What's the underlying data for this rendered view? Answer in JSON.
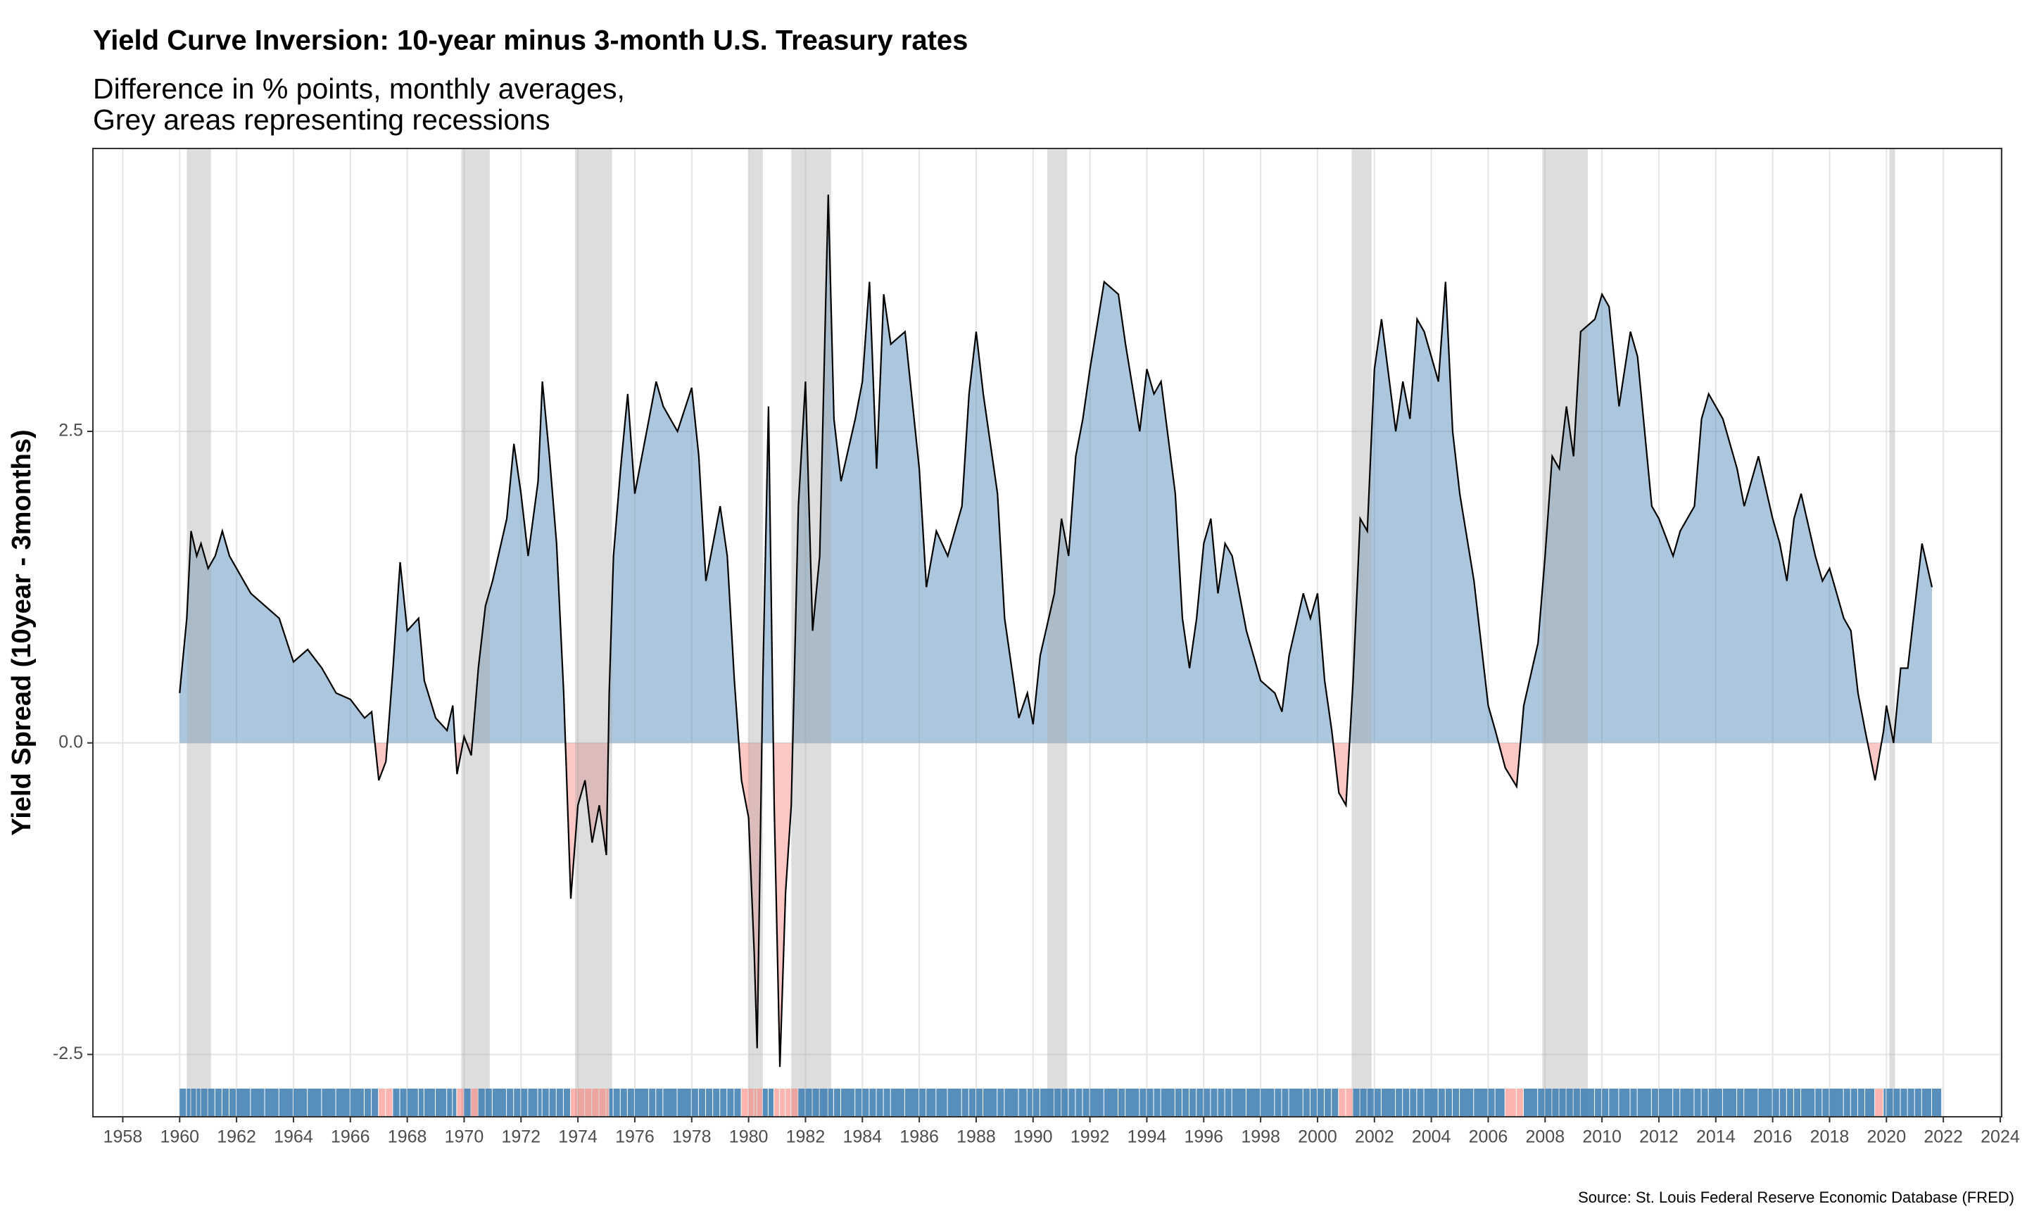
{
  "chart_data": {
    "type": "area",
    "title": "Yield Curve Inversion: 10-year minus 3-month U.S. Treasury rates",
    "subtitle": [
      "Difference in % points, monthly averages,",
      "Grey areas representing recessions"
    ],
    "y_label": "Yield Spread (10year - 3months)",
    "caption": "Source: St. Louis Federal Reserve Economic Database (FRED)",
    "xlim": [
      1956.95,
      2024.05
    ],
    "ylim": [
      -3,
      4.77
    ],
    "xticks": [
      1958,
      1960,
      1962,
      1964,
      1966,
      1968,
      1970,
      1972,
      1974,
      1976,
      1978,
      1980,
      1982,
      1984,
      1986,
      1988,
      1990,
      1992,
      1994,
      1996,
      1998,
      2000,
      2002,
      2004,
      2006,
      2008,
      2010,
      2012,
      2014,
      2016,
      2018,
      2020,
      2022,
      2024
    ],
    "yticks": [
      -2.5,
      {
        "value": 0,
        "label": "0.0"
      },
      2.5
    ],
    "grid": true,
    "positive_color": "#4682b4",
    "negative_color": "#f8766d",
    "line_color": "#000000",
    "recession_color": "#aaaaaa",
    "recessions": [
      [
        1960.25,
        1961.1
      ],
      [
        1969.9,
        1970.9
      ],
      [
        1973.9,
        1975.2
      ],
      [
        1980.0,
        1980.5
      ],
      [
        1981.5,
        1982.9
      ],
      [
        1990.5,
        1991.2
      ],
      [
        2001.2,
        2001.9
      ],
      [
        2007.9,
        2009.5
      ],
      [
        2020.1,
        2020.3
      ]
    ],
    "x": [
      1960,
      1960.25,
      1960.4,
      1960.6,
      1960.75,
      1961,
      1961.25,
      1961.5,
      1961.75,
      1962,
      1962.5,
      1963,
      1963.5,
      1964,
      1964.5,
      1965,
      1965.5,
      1966,
      1966.5,
      1966.75,
      1967,
      1967.25,
      1967.5,
      1967.75,
      1968,
      1968.4,
      1968.6,
      1969,
      1969.4,
      1969.6,
      1969.75,
      1970,
      1970.25,
      1970.5,
      1970.75,
      1971,
      1971.5,
      1971.75,
      1972,
      1972.25,
      1972.6,
      1972.75,
      1973,
      1973.25,
      1973.5,
      1973.75,
      1974,
      1974.25,
      1974.5,
      1974.75,
      1975,
      1975.1,
      1975.25,
      1975.5,
      1975.75,
      1976,
      1976.5,
      1976.75,
      1977,
      1977.5,
      1978,
      1978.25,
      1978.5,
      1978.75,
      1979,
      1979.25,
      1979.5,
      1979.75,
      1980,
      1980.2,
      1980.3,
      1980.5,
      1980.7,
      1980.9,
      1981.1,
      1981.3,
      1981.5,
      1981.75,
      1982,
      1982.25,
      1982.5,
      1982.8,
      1983,
      1983.25,
      1983.75,
      1984,
      1984.25,
      1984.5,
      1984.75,
      1985,
      1985.5,
      1986,
      1986.25,
      1986.6,
      1987,
      1987.5,
      1987.75,
      1988,
      1988.25,
      1988.75,
      1989,
      1989.5,
      1989.8,
      1990,
      1990.25,
      1990.75,
      1991,
      1991.25,
      1991.5,
      1991.75,
      1992,
      1992.5,
      1993,
      1993.25,
      1993.75,
      1994,
      1994.25,
      1994.5,
      1995,
      1995.25,
      1995.5,
      1995.75,
      1996,
      1996.25,
      1996.5,
      1996.75,
      1997,
      1997.5,
      1998,
      1998.5,
      1998.75,
      1999,
      1999.5,
      1999.75,
      2000,
      2000.25,
      2000.5,
      2000.75,
      2001,
      2001.25,
      2001.5,
      2001.75,
      2002,
      2002.25,
      2002.75,
      2003,
      2003.25,
      2003.5,
      2003.75,
      2004.25,
      2004.5,
      2004.75,
      2005,
      2005.5,
      2006,
      2006.25,
      2006.6,
      2007,
      2007.25,
      2007.75,
      2008,
      2008.25,
      2008.5,
      2008.75,
      2009,
      2009.25,
      2009.75,
      2010,
      2010.25,
      2010.6,
      2011,
      2011.25,
      2011.75,
      2012,
      2012.5,
      2012.75,
      2013.25,
      2013.5,
      2013.75,
      2014.25,
      2014.75,
      2015,
      2015.5,
      2016,
      2016.25,
      2016.5,
      2016.75,
      2017,
      2017.5,
      2017.75,
      2018,
      2018.5,
      2018.75,
      2019,
      2019.25,
      2019.6,
      2019.9,
      2020,
      2020.25,
      2020.5,
      2020.75,
      2021,
      2021.25,
      2021.6
    ],
    "values": [
      0.4,
      1.0,
      1.7,
      1.5,
      1.6,
      1.4,
      1.5,
      1.7,
      1.5,
      1.4,
      1.2,
      1.1,
      1.0,
      0.65,
      0.75,
      0.6,
      0.4,
      0.35,
      0.2,
      0.25,
      -0.3,
      -0.15,
      0.6,
      1.45,
      0.9,
      1.0,
      0.5,
      0.2,
      0.1,
      0.3,
      -0.25,
      0.05,
      -0.1,
      0.6,
      1.1,
      1.3,
      1.8,
      2.4,
      2.0,
      1.5,
      2.1,
      2.9,
      2.3,
      1.6,
      0.4,
      -1.25,
      -0.5,
      -0.3,
      -0.8,
      -0.5,
      -0.9,
      0.4,
      1.5,
      2.2,
      2.8,
      2.0,
      2.6,
      2.9,
      2.7,
      2.5,
      2.85,
      2.3,
      1.3,
      1.6,
      1.9,
      1.5,
      0.5,
      -0.3,
      -0.6,
      -1.7,
      -2.45,
      0.5,
      2.7,
      -0.5,
      -2.6,
      -1.2,
      -0.5,
      1.9,
      2.9,
      0.9,
      1.5,
      4.4,
      2.6,
      2.1,
      2.6,
      2.9,
      3.7,
      2.2,
      3.6,
      3.2,
      3.3,
      2.2,
      1.25,
      1.7,
      1.5,
      1.9,
      2.8,
      3.3,
      2.8,
      2.0,
      1.0,
      0.2,
      0.4,
      0.15,
      0.7,
      1.2,
      1.8,
      1.5,
      2.3,
      2.6,
      3.0,
      3.7,
      3.6,
      3.2,
      2.5,
      3.0,
      2.8,
      2.9,
      2.0,
      1.0,
      0.6,
      1.0,
      1.6,
      1.8,
      1.2,
      1.6,
      1.5,
      0.9,
      0.5,
      0.4,
      0.25,
      0.7,
      1.2,
      1.0,
      1.2,
      0.5,
      0.1,
      -0.4,
      -0.5,
      0.5,
      1.8,
      1.7,
      3.0,
      3.4,
      2.5,
      2.9,
      2.6,
      3.4,
      3.3,
      2.9,
      3.7,
      2.5,
      2.0,
      1.3,
      0.3,
      0.1,
      -0.2,
      -0.35,
      0.3,
      0.8,
      1.5,
      2.3,
      2.2,
      2.7,
      2.3,
      3.3,
      3.4,
      3.6,
      3.5,
      2.7,
      3.3,
      3.1,
      1.9,
      1.8,
      1.5,
      1.7,
      1.9,
      2.6,
      2.8,
      2.6,
      2.2,
      1.9,
      2.3,
      1.8,
      1.6,
      1.3,
      1.8,
      2.0,
      1.5,
      1.3,
      1.4,
      1.0,
      0.9,
      0.4,
      0.1,
      -0.3,
      0.1,
      0.3,
      0.0,
      0.6,
      0.6,
      1.1,
      1.6,
      1.25
    ]
  }
}
